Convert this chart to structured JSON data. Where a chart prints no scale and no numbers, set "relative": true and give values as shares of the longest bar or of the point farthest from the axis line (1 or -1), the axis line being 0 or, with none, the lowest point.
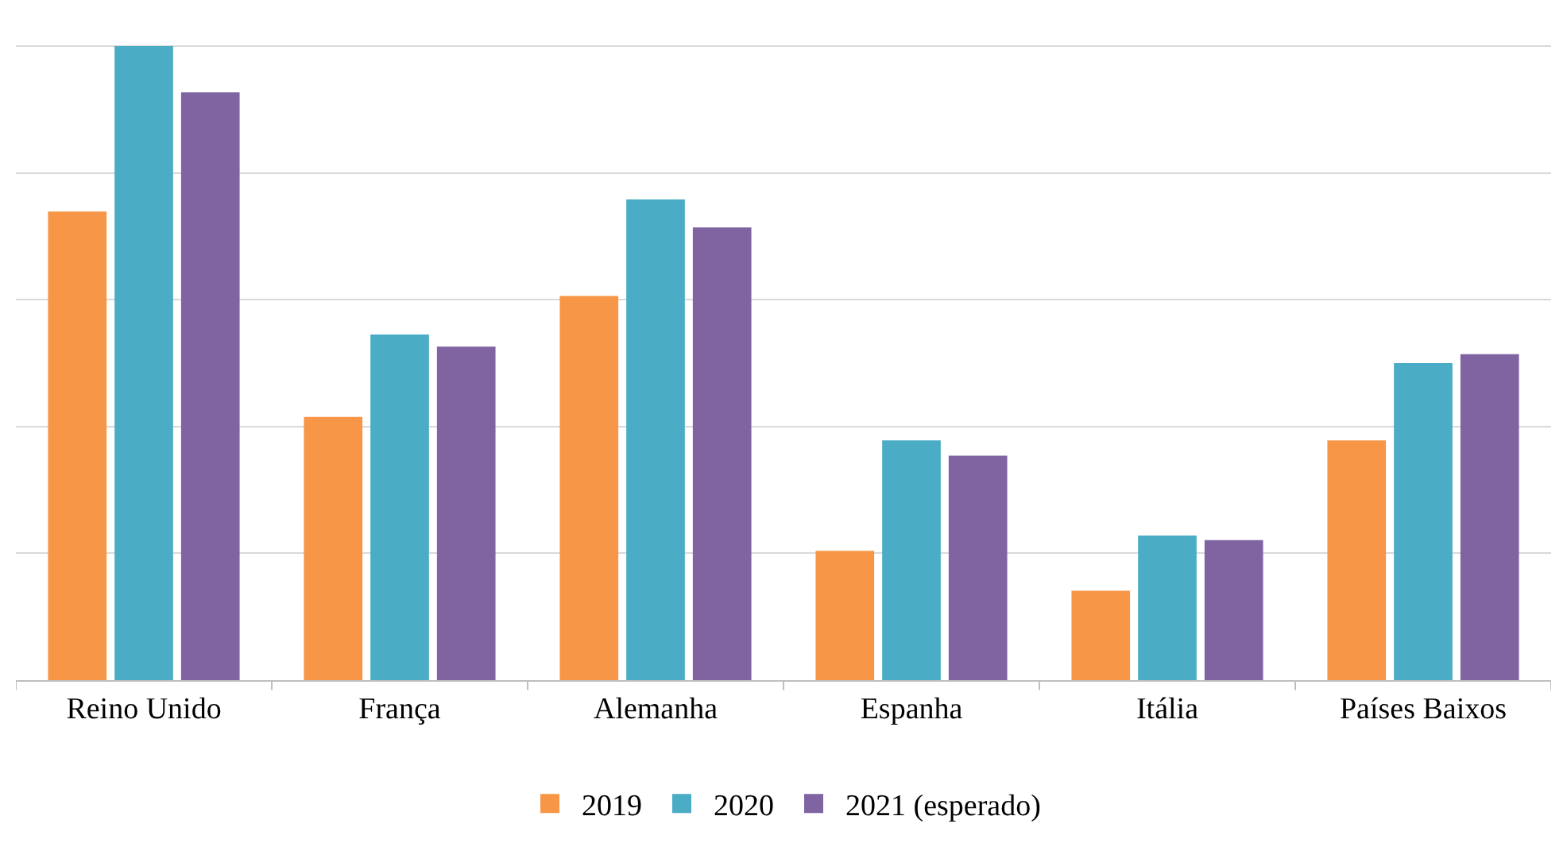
{
  "chart_data": {
    "type": "bar",
    "relative": true,
    "grid": "y",
    "legend": "bottom",
    "categories": [
      "Reino Unido",
      "França",
      "Alemanha",
      "Espanha",
      "Itália",
      "Países Baixos"
    ],
    "series": [
      {
        "name": "2019",
        "color": "#f79646",
        "values": [
          0.739,
          0.415,
          0.606,
          0.204,
          0.141,
          0.378
        ]
      },
      {
        "name": "2020",
        "color": "#4bacc6",
        "values": [
          1.0,
          0.545,
          0.758,
          0.378,
          0.228,
          0.5
        ]
      },
      {
        "name": "2021 (esperado)",
        "color": "#8064a2",
        "values": [
          0.927,
          0.526,
          0.714,
          0.354,
          0.221,
          0.514
        ]
      }
    ]
  }
}
